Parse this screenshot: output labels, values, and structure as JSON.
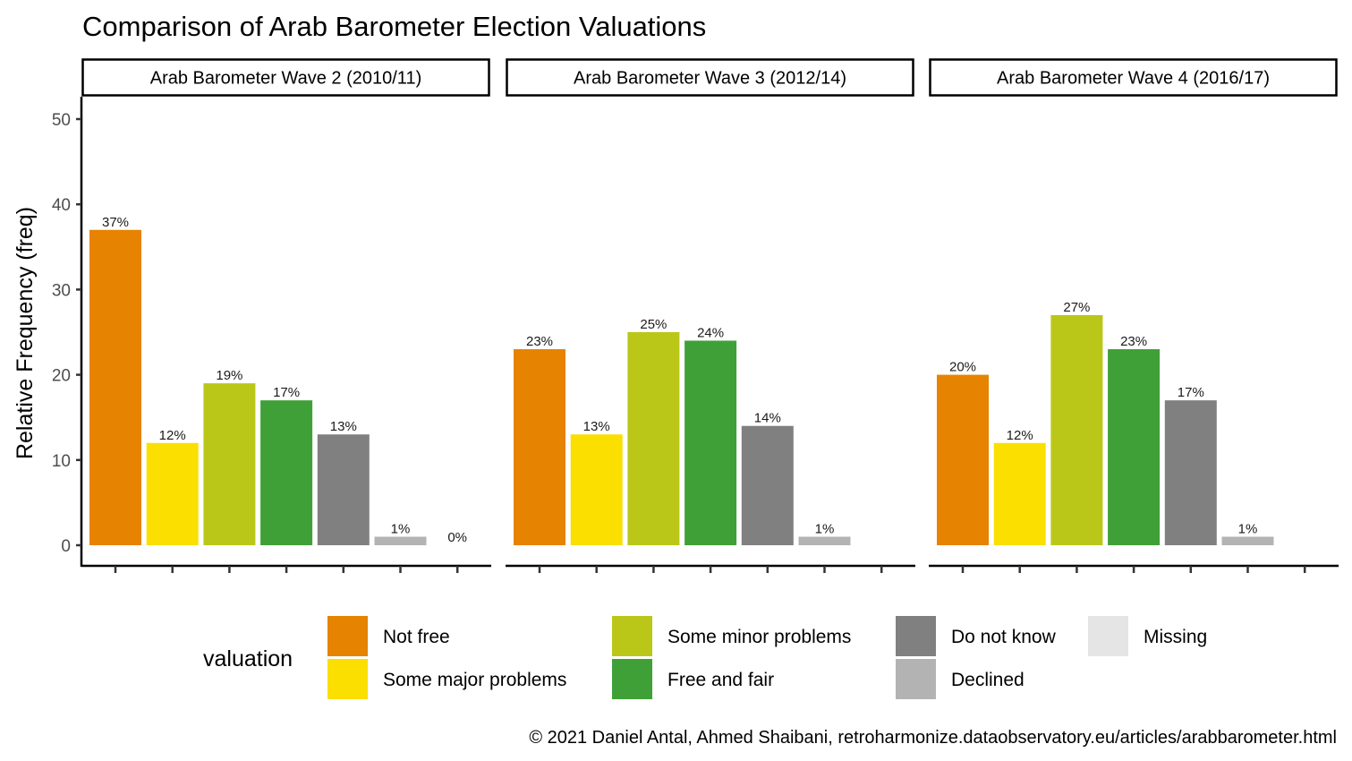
{
  "chart_data": {
    "type": "bar",
    "title": "Comparison of Arab Barometer Election Valuations",
    "xlabel": "",
    "ylabel": "Relative Frequency (freq)",
    "ylim": [
      0,
      52
    ],
    "yticks": [
      0,
      10,
      20,
      30,
      40,
      50
    ],
    "grid": false,
    "categories": [
      "Not free",
      "Some major problems",
      "Some minor problems",
      "Free and fair",
      "Do not know",
      "Declined",
      "Missing"
    ],
    "colors": [
      "#E68300",
      "#FADF00",
      "#BAC718",
      "#3FA037",
      "#808080",
      "#B3B3B3",
      "#E5E5E5"
    ],
    "panels": [
      {
        "name": "Arab Barometer Wave 2 (2010/11)",
        "values": [
          37,
          12,
          19,
          17,
          13,
          1,
          0
        ],
        "labels": [
          "37%",
          "12%",
          "19%",
          "17%",
          "13%",
          "1%",
          "0%"
        ]
      },
      {
        "name": "Arab Barometer Wave 3 (2012/14)",
        "values": [
          23,
          13,
          25,
          24,
          14,
          1,
          null
        ],
        "labels": [
          "23%",
          "13%",
          "25%",
          "24%",
          "14%",
          "1%",
          null
        ]
      },
      {
        "name": "Arab Barometer Wave 4 (2016/17)",
        "values": [
          20,
          12,
          27,
          23,
          17,
          1,
          null
        ],
        "labels": [
          "20%",
          "12%",
          "27%",
          "23%",
          "17%",
          "1%",
          null
        ]
      }
    ],
    "legend": {
      "title": "valuation",
      "position": "bottom",
      "entries": [
        "Not free",
        "Some major problems",
        "Some minor problems",
        "Free and fair",
        "Do not know",
        "Declined",
        "Missing"
      ]
    },
    "caption": "© 2021 Daniel Antal, Ahmed Shaibani, retroharmonize.dataobservatory.eu/articles/arabbarometer.html"
  }
}
